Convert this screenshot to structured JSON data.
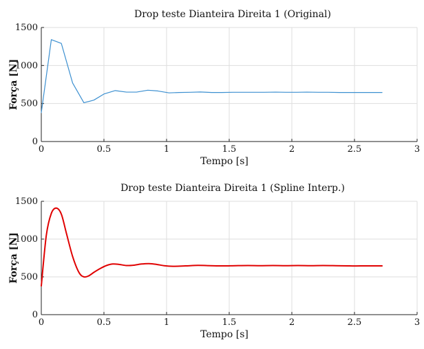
{
  "chart_data": [
    {
      "type": "line",
      "title": "Drop teste Dianteira Direita 1 (Original)",
      "xlabel": "Tempo [s]",
      "ylabel": "Força [N]",
      "xlim": [
        0,
        3
      ],
      "ylim": [
        0,
        1500
      ],
      "xticks": [
        "0",
        "0.5",
        "1",
        "1.5",
        "2",
        "2.5",
        "3"
      ],
      "yticks": [
        "0",
        "500",
        "1000",
        "1500"
      ],
      "grid": true,
      "color": "#3b8fd0",
      "series": [
        {
          "x": [
            0,
            0.08,
            0.16,
            0.25,
            0.34,
            0.42,
            0.5,
            0.59,
            0.68,
            0.76,
            0.85,
            0.93,
            1.02,
            1.1,
            1.19,
            1.27,
            1.36,
            1.44,
            1.53,
            1.61,
            1.7,
            1.78,
            1.87,
            1.95,
            2.04,
            2.12,
            2.21,
            2.29,
            2.38,
            2.46,
            2.55,
            2.63,
            2.72
          ],
          "y": [
            380,
            1340,
            1290,
            770,
            510,
            545,
            625,
            670,
            650,
            650,
            675,
            665,
            640,
            645,
            648,
            652,
            645,
            645,
            648,
            648,
            648,
            648,
            650,
            648,
            648,
            650,
            648,
            648,
            645,
            645,
            645,
            645,
            645
          ]
        }
      ]
    },
    {
      "type": "line",
      "title": "Drop teste Dianteira Direita 1 (Spline Interp.)",
      "xlabel": "Tempo [s]",
      "ylabel": "Força [N]",
      "xlim": [
        0,
        3
      ],
      "ylim": [
        0,
        1500
      ],
      "xticks": [
        "0",
        "0.5",
        "1",
        "1.5",
        "2",
        "2.5",
        "3"
      ],
      "yticks": [
        "0",
        "500",
        "1000",
        "1500"
      ],
      "grid": true,
      "color": "#e00000",
      "series": [
        {
          "x": [
            0,
            0.04,
            0.08,
            0.12,
            0.16,
            0.2,
            0.25,
            0.3,
            0.34,
            0.38,
            0.42,
            0.47,
            0.52,
            0.57,
            0.62,
            0.68,
            0.74,
            0.8,
            0.86,
            0.92,
            0.98,
            1.05,
            1.15,
            1.25,
            1.35,
            1.45,
            1.55,
            1.65,
            1.75,
            1.85,
            1.95,
            2.05,
            2.15,
            2.25,
            2.35,
            2.45,
            2.55,
            2.65,
            2.72
          ],
          "y": [
            380,
            1050,
            1340,
            1410,
            1330,
            1080,
            770,
            560,
            500,
            515,
            560,
            610,
            650,
            670,
            665,
            650,
            655,
            670,
            675,
            665,
            648,
            640,
            645,
            652,
            648,
            645,
            648,
            650,
            648,
            650,
            648,
            650,
            648,
            650,
            648,
            645,
            645,
            645,
            645
          ]
        }
      ]
    }
  ]
}
